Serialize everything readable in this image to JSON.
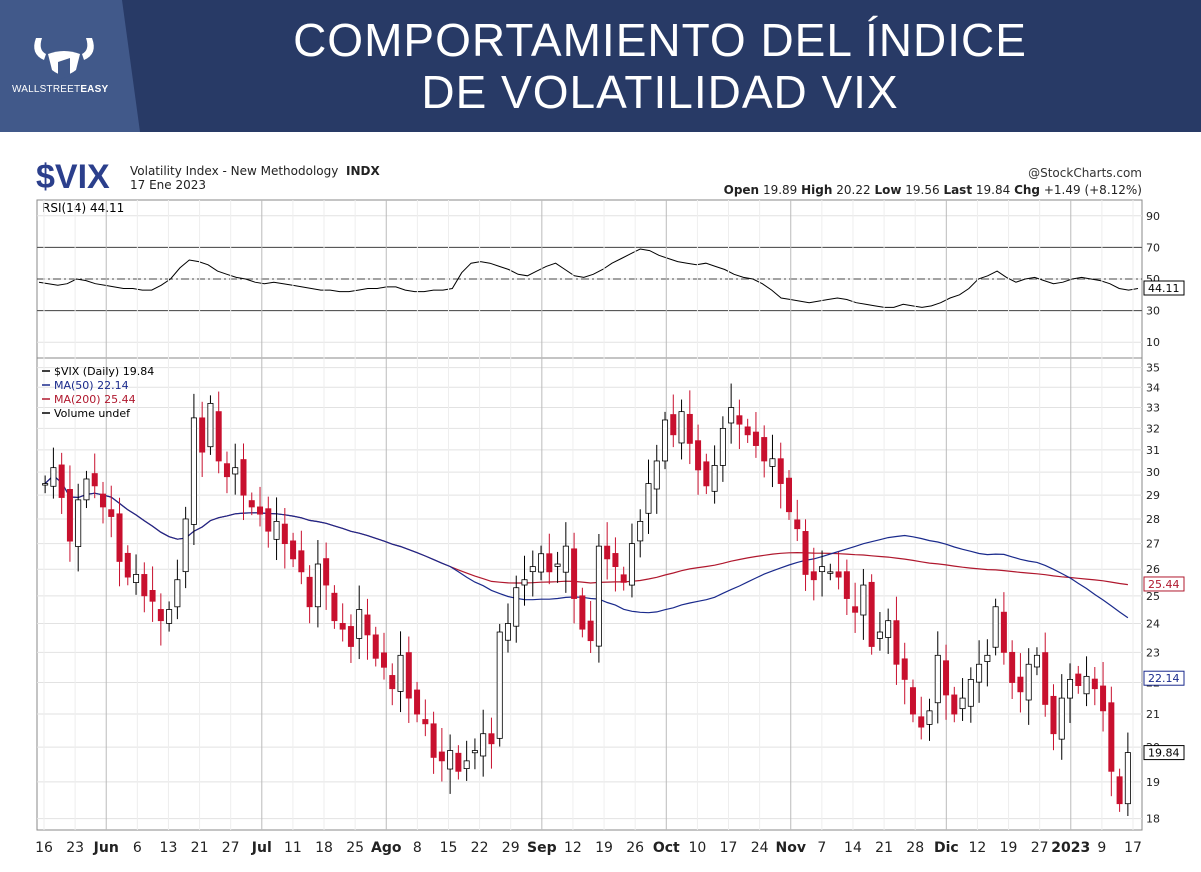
{
  "header": {
    "logo_text": "WALLSTREET",
    "logo_text_bold": "EASY",
    "title_line1": "COMPORTAMIENTO DEL ÍNDICE",
    "title_line2": "DE VOLATILIDAD VIX"
  },
  "chart_header": {
    "ticker": "$VIX",
    "description": "Volatility Index - New Methodology",
    "exchange": "INDX",
    "date": "17 Ene 2023",
    "source": "@StockCharts.com",
    "open_label": "Open",
    "open": "19.89",
    "high_label": "High",
    "high": "20.22",
    "low_label": "Low",
    "low": "19.56",
    "last_label": "Last",
    "last": "19.84",
    "chg_label": "Chg",
    "chg": "+1.49 (+8.12%)"
  },
  "colors": {
    "up": "#ffffff",
    "down": "#c8102e",
    "ma50": "#1a2a8c",
    "ma200": "#b0182e",
    "rsi": "#000000",
    "banner": "#283a66",
    "ticker": "#2b3f8c"
  },
  "chart_data": [
    {
      "type": "line",
      "title": "RSI(14) 44.11",
      "series": [
        {
          "name": "RSI(14)",
          "values": [
            48,
            47,
            46,
            47,
            50,
            49,
            47,
            46,
            45,
            44,
            44,
            43,
            43,
            46,
            50,
            57,
            62,
            61,
            59,
            55,
            53,
            51,
            50,
            48,
            47,
            48,
            47,
            46,
            45,
            44,
            43,
            43,
            42,
            42,
            43,
            44,
            44,
            45,
            45,
            43,
            42,
            42,
            43,
            43,
            44,
            54,
            60,
            61,
            60,
            58,
            56,
            53,
            52,
            55,
            58,
            60,
            56,
            52,
            51,
            53,
            56,
            60,
            63,
            66,
            69,
            68,
            65,
            63,
            61,
            60,
            59,
            60,
            58,
            56,
            53,
            51,
            50,
            47,
            43,
            38,
            37,
            36,
            35,
            36,
            37,
            38,
            37,
            35,
            34,
            33,
            32,
            32,
            34,
            33,
            32,
            33,
            35,
            38,
            40,
            44,
            50,
            52,
            55,
            51,
            48,
            50,
            51,
            49,
            47,
            48,
            50,
            51,
            50,
            49,
            47,
            44,
            43,
            44
          ]
        }
      ],
      "ylim": [
        0,
        100
      ],
      "y_ticks": [
        90,
        70,
        50,
        30,
        10
      ],
      "reference_lines": [
        70,
        50,
        30
      ],
      "last_value": "44.11"
    },
    {
      "type": "candlestick",
      "title": "$VIX (Daily) 19.84",
      "legend": [
        "$VIX (Daily) 19.84",
        "MA(50) 22.14",
        "MA(200) 25.44",
        "Volume undef"
      ],
      "x_ticks": [
        "16",
        "23",
        "Jun",
        "6",
        "13",
        "21",
        "27",
        "Jul",
        "11",
        "18",
        "25",
        "Ago",
        "8",
        "15",
        "22",
        "29",
        "Sep",
        "12",
        "19",
        "26",
        "Oct",
        "10",
        "17",
        "24",
        "Nov",
        "7",
        "14",
        "21",
        "28",
        "Dic",
        "12",
        "19",
        "27",
        "2023",
        "9",
        "17"
      ],
      "y_ticks": [
        35,
        34,
        33,
        32,
        31,
        30,
        29,
        28,
        27,
        26,
        25,
        24,
        23,
        22,
        21,
        20,
        19,
        18
      ],
      "ylim": [
        17.7,
        35.5
      ],
      "y_scale": "log",
      "grid": true,
      "closes": [
        29.5,
        30.2,
        28.9,
        27.1,
        28.8,
        29.7,
        29.4,
        28.5,
        28.1,
        26.3,
        25.7,
        25.8,
        25.0,
        24.8,
        24.1,
        24.5,
        25.6,
        28.0,
        32.5,
        30.9,
        33.2,
        30.5,
        29.8,
        30.2,
        29.0,
        28.5,
        28.2,
        27.5,
        27.9,
        27.0,
        26.4,
        25.9,
        24.6,
        26.2,
        25.4,
        24.1,
        23.8,
        23.2,
        24.5,
        23.6,
        22.8,
        22.5,
        21.8,
        22.9,
        21.5,
        21.0,
        20.7,
        19.7,
        19.6,
        19.9,
        19.3,
        19.6,
        19.9,
        20.4,
        20.1,
        23.7,
        24.0,
        25.3,
        25.6,
        26.1,
        26.6,
        25.9,
        26.2,
        26.9,
        24.9,
        23.8,
        23.4,
        26.9,
        26.4,
        26.1,
        25.5,
        27.0,
        27.9,
        29.5,
        30.5,
        32.4,
        31.7,
        32.8,
        31.3,
        30.1,
        29.4,
        30.3,
        32.0,
        33.0,
        32.2,
        31.7,
        31.2,
        30.5,
        30.6,
        29.5,
        28.3,
        27.6,
        25.8,
        25.6,
        26.1,
        25.9,
        25.7,
        24.9,
        24.4,
        25.4,
        23.2,
        23.7,
        24.1,
        22.6,
        22.1,
        21.0,
        20.6,
        21.1,
        22.9,
        21.6,
        21.0,
        21.5,
        22.1,
        22.6,
        22.9,
        24.6,
        23.0,
        22.0,
        21.7,
        22.6,
        22.9,
        21.3,
        20.4,
        21.5,
        22.1,
        21.9,
        22.2,
        21.8,
        21.1,
        19.3,
        18.4,
        19.84
      ]
    }
  ]
}
